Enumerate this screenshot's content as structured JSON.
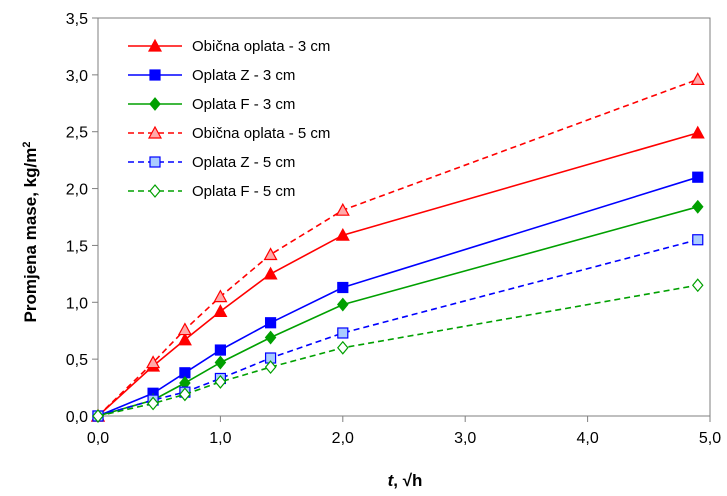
{
  "chart_data": {
    "type": "line",
    "title": "",
    "xlabel_italic": "t",
    "xlabel_rest": ", √h",
    "ylabel_main": "Promjena mase, kg/m",
    "ylabel_sup": "2",
    "xlim": [
      0,
      5
    ],
    "ylim": [
      0,
      3.5
    ],
    "xticks": [
      0,
      1,
      2,
      3,
      4,
      5
    ],
    "xtick_labels": [
      "0,0",
      "1,0",
      "2,0",
      "3,0",
      "4,0",
      "5,0"
    ],
    "yticks": [
      0,
      0.5,
      1,
      1.5,
      2,
      2.5,
      3,
      3.5
    ],
    "ytick_labels": [
      "0,0",
      "0,5",
      "1,0",
      "1,5",
      "2,0",
      "2,5",
      "3,0",
      "3,5"
    ],
    "grid": false,
    "legend_position": "top-left",
    "x": [
      0,
      0.45,
      0.71,
      1.0,
      1.41,
      2.0,
      4.9
    ],
    "series": [
      {
        "name": "Obična oplata - 3 cm",
        "values": [
          0,
          0.44,
          0.67,
          0.92,
          1.25,
          1.59,
          2.49
        ],
        "color": "#ff0000",
        "marker": "triangle",
        "filled": true,
        "dashed": false
      },
      {
        "name": "Oplata Z - 3 cm",
        "values": [
          0,
          0.2,
          0.38,
          0.58,
          0.82,
          1.13,
          2.1
        ],
        "color": "#0000ff",
        "marker": "square",
        "filled": true,
        "dashed": false
      },
      {
        "name": "Oplata F - 3 cm",
        "values": [
          0,
          0.14,
          0.29,
          0.47,
          0.69,
          0.98,
          1.84
        ],
        "color": "#00a000",
        "marker": "diamond",
        "filled": true,
        "dashed": false
      },
      {
        "name": "Obična oplata - 5 cm",
        "values": [
          0,
          0.47,
          0.76,
          1.05,
          1.42,
          1.81,
          2.96
        ],
        "color": "#ff0000",
        "marker": "triangle",
        "filled": false,
        "fill": "#ffaaaa",
        "dashed": true
      },
      {
        "name": "Oplata Z - 5 cm",
        "values": [
          0,
          0.14,
          0.21,
          0.33,
          0.51,
          0.73,
          1.55
        ],
        "color": "#0000ff",
        "marker": "square",
        "filled": false,
        "fill": "#aaccff",
        "dashed": true
      },
      {
        "name": "Oplata F - 5 cm",
        "values": [
          0,
          0.11,
          0.19,
          0.3,
          0.43,
          0.6,
          1.15
        ],
        "color": "#00a000",
        "marker": "diamond",
        "filled": false,
        "fill": "#ffffff",
        "dashed": true
      }
    ]
  }
}
